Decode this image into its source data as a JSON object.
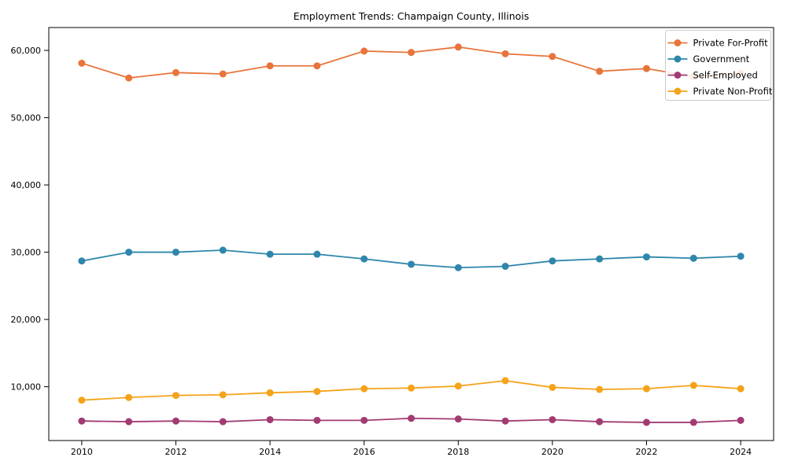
{
  "figure": {
    "title": "Employment Trends: Champaign County, Illinois"
  },
  "chart_data": {
    "type": "line",
    "title": "Employment Trends: Champaign County, Illinois",
    "xlabel": "",
    "ylabel": "",
    "grid": false,
    "marker": "circle",
    "legend_position": "upper right",
    "legend_entries": [
      "Private For-Profit",
      "Government",
      "Self-Employed",
      "Private Non-Profit"
    ],
    "x": [
      2010,
      2011,
      2012,
      2013,
      2014,
      2015,
      2016,
      2017,
      2018,
      2019,
      2020,
      2021,
      2022,
      2023,
      2024
    ],
    "x_tick_labels": [
      "2010",
      "2012",
      "2014",
      "2016",
      "2018",
      "2020",
      "2022",
      "2024"
    ],
    "x_ticks": [
      2010,
      2012,
      2014,
      2016,
      2018,
      2020,
      2022,
      2024
    ],
    "y_ticks": [
      10000,
      20000,
      30000,
      40000,
      50000,
      60000
    ],
    "y_tick_labels": [
      "10,000",
      "20,000",
      "30,000",
      "40,000",
      "50,000",
      "60,000"
    ],
    "xlim": [
      2009.3,
      2024.7
    ],
    "ylim": [
      2000,
      63400
    ],
    "series": [
      {
        "name": "Private For-Profit",
        "slug": "private-for-profit",
        "color": "#E8743B",
        "values": [
          58100,
          55900,
          56700,
          56500,
          57700,
          57700,
          59900,
          59700,
          60500,
          59500,
          59100,
          56900,
          57300,
          56100,
          56600
        ]
      },
      {
        "name": "Government",
        "slug": "government",
        "color": "#2E86AB",
        "values": [
          28700,
          30000,
          30000,
          30300,
          29700,
          29700,
          29000,
          28200,
          27700,
          27900,
          28700,
          29000,
          29300,
          29100,
          29400
        ]
      },
      {
        "name": "Self-Employed",
        "slug": "self-employed",
        "color": "#A23B72",
        "values": [
          4900,
          4800,
          4900,
          4800,
          5100,
          5000,
          5000,
          5300,
          5200,
          4900,
          5100,
          4800,
          4700,
          4700,
          5000
        ]
      },
      {
        "name": "Private Non-Profit",
        "slug": "private-non-profit",
        "color": "#F5A31A",
        "values": [
          8000,
          8400,
          8700,
          8800,
          9100,
          9300,
          9700,
          9800,
          10100,
          10900,
          9900,
          9600,
          9700,
          10200,
          9700
        ]
      }
    ]
  }
}
